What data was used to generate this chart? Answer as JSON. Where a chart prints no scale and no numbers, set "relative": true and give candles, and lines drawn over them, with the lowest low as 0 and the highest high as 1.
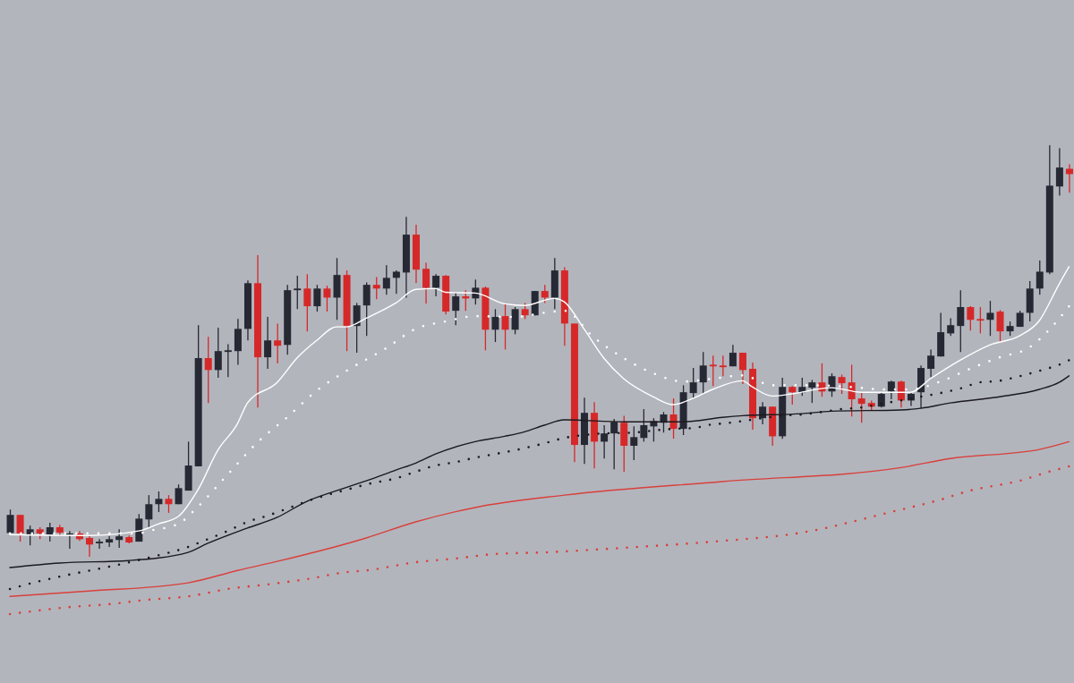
{
  "chart_data": {
    "type": "candlestick",
    "relative": true,
    "categories": [
      null,
      null,
      null,
      null,
      null,
      null,
      null,
      null,
      null,
      null,
      null,
      null,
      null,
      null,
      null,
      null,
      null,
      null,
      null,
      null,
      null,
      null,
      null,
      null,
      null,
      null,
      null,
      null,
      null,
      null,
      null,
      null,
      null,
      null,
      null,
      null,
      null,
      null,
      null,
      null,
      null,
      null,
      null,
      null,
      null,
      null,
      null,
      null,
      null,
      null,
      null,
      null,
      null,
      null,
      null,
      null,
      null,
      null,
      null,
      null,
      null,
      null,
      null,
      null,
      null,
      null,
      null,
      null,
      null,
      null,
      null,
      null,
      null,
      null,
      null,
      null,
      null,
      null,
      null,
      null,
      null,
      null,
      null,
      null,
      null,
      null,
      null,
      null,
      null,
      null,
      null,
      null,
      null,
      null,
      null,
      null,
      null,
      null,
      null,
      null,
      null,
      null,
      null,
      null,
      null,
      null,
      null,
      null
    ],
    "ohlc": [
      [
        0.058,
        0.115,
        0.058,
        0.102
      ],
      [
        0.102,
        0.102,
        0.037,
        0.057
      ],
      [
        0.054,
        0.076,
        0.028,
        0.067
      ],
      [
        0.067,
        0.072,
        0.043,
        0.057
      ],
      [
        0.054,
        0.083,
        0.037,
        0.072
      ],
      [
        0.072,
        0.078,
        0.05,
        0.059
      ],
      [
        0.054,
        0.063,
        0.02,
        0.057
      ],
      [
        0.057,
        0.063,
        0.039,
        0.043
      ],
      [
        0.046,
        0.052,
        0,
        0.03
      ],
      [
        0.033,
        0.043,
        0.02,
        0.037
      ],
      [
        0.035,
        0.05,
        0.024,
        0.043
      ],
      [
        0.041,
        0.067,
        0.022,
        0.05
      ],
      [
        0.048,
        0.052,
        0.033,
        0.035
      ],
      [
        0.037,
        0.104,
        0.037,
        0.093
      ],
      [
        0.091,
        0.15,
        0.07,
        0.128
      ],
      [
        0.128,
        0.159,
        0.109,
        0.141
      ],
      [
        0.141,
        0.15,
        0.107,
        0.128
      ],
      [
        0.128,
        0.176,
        0.128,
        0.167
      ],
      [
        0.161,
        0.28,
        0.161,
        0.222
      ],
      [
        0.22,
        0.563,
        0.22,
        0.483
      ],
      [
        0.483,
        0.535,
        0.374,
        0.454
      ],
      [
        0.454,
        0.557,
        0.435,
        0.5
      ],
      [
        0.498,
        0.517,
        0.437,
        0.502
      ],
      [
        0.5,
        0.578,
        0.467,
        0.554
      ],
      [
        0.554,
        0.672,
        0.526,
        0.665
      ],
      [
        0.665,
        0.733,
        0.363,
        0.485
      ],
      [
        0.485,
        0.583,
        0.457,
        0.526
      ],
      [
        0.526,
        0.567,
        0.47,
        0.513
      ],
      [
        0.515,
        0.661,
        0.491,
        0.648
      ],
      [
        0.648,
        0.683,
        0.602,
        0.652
      ],
      [
        0.652,
        0.687,
        0.548,
        0.609
      ],
      [
        0.609,
        0.661,
        0.596,
        0.652
      ],
      [
        0.652,
        0.659,
        0.596,
        0.63
      ],
      [
        0.63,
        0.726,
        0.576,
        0.685
      ],
      [
        0.685,
        0.696,
        0.5,
        0.561
      ],
      [
        0.561,
        0.617,
        0.496,
        0.611
      ],
      [
        0.611,
        0.667,
        0.537,
        0.661
      ],
      [
        0.661,
        0.68,
        0.626,
        0.652
      ],
      [
        0.652,
        0.709,
        0.637,
        0.678
      ],
      [
        0.678,
        0.696,
        0.639,
        0.693
      ],
      [
        0.691,
        0.826,
        0.63,
        0.783
      ],
      [
        0.783,
        0.807,
        0.665,
        0.698
      ],
      [
        0.7,
        0.715,
        0.615,
        0.654
      ],
      [
        0.654,
        0.687,
        0.633,
        0.683
      ],
      [
        0.683,
        0.685,
        0.589,
        0.596
      ],
      [
        0.598,
        0.641,
        0.563,
        0.633
      ],
      [
        0.633,
        0.648,
        0.598,
        0.628
      ],
      [
        0.628,
        0.674,
        0.613,
        0.654
      ],
      [
        0.654,
        0.657,
        0.502,
        0.552
      ],
      [
        0.552,
        0.602,
        0.522,
        0.583
      ],
      [
        0.585,
        0.615,
        0.504,
        0.552
      ],
      [
        0.552,
        0.607,
        0.541,
        0.602
      ],
      [
        0.602,
        0.617,
        0.578,
        0.587
      ],
      [
        0.587,
        0.646,
        0.587,
        0.646
      ],
      [
        0.646,
        0.661,
        0.617,
        0.63
      ],
      [
        0.63,
        0.726,
        0.602,
        0.696
      ],
      [
        0.696,
        0.704,
        0.513,
        0.567
      ],
      [
        0.567,
        0.567,
        0.23,
        0.272
      ],
      [
        0.272,
        0.387,
        0.226,
        0.35
      ],
      [
        0.35,
        0.376,
        0.215,
        0.28
      ],
      [
        0.28,
        0.32,
        0.239,
        0.3
      ],
      [
        0.3,
        0.335,
        0.213,
        0.328
      ],
      [
        0.326,
        0.343,
        0.207,
        0.27
      ],
      [
        0.27,
        0.317,
        0.235,
        0.291
      ],
      [
        0.289,
        0.359,
        0.28,
        0.32
      ],
      [
        0.317,
        0.337,
        0.28,
        0.33
      ],
      [
        0.326,
        0.352,
        0.302,
        0.346
      ],
      [
        0.346,
        0.385,
        0.287,
        0.311
      ],
      [
        0.311,
        0.417,
        0.296,
        0.4
      ],
      [
        0.398,
        0.459,
        0.385,
        0.424
      ],
      [
        0.424,
        0.498,
        0.396,
        0.465
      ],
      [
        0.467,
        0.489,
        0.415,
        0.463
      ],
      [
        0.465,
        0.489,
        0.439,
        0.461
      ],
      [
        0.463,
        0.515,
        0.463,
        0.496
      ],
      [
        0.496,
        0.496,
        0.42,
        0.454
      ],
      [
        0.457,
        0.472,
        0.309,
        0.337
      ],
      [
        0.337,
        0.376,
        0.322,
        0.365
      ],
      [
        0.365,
        0.365,
        0.27,
        0.293
      ],
      [
        0.293,
        0.435,
        0.287,
        0.413
      ],
      [
        0.413,
        0.415,
        0.37,
        0.4
      ],
      [
        0.4,
        0.435,
        0.391,
        0.413
      ],
      [
        0.411,
        0.43,
        0.374,
        0.424
      ],
      [
        0.424,
        0.47,
        0.389,
        0.402
      ],
      [
        0.402,
        0.446,
        0.389,
        0.439
      ],
      [
        0.437,
        0.443,
        0.396,
        0.422
      ],
      [
        0.424,
        0.467,
        0.341,
        0.383
      ],
      [
        0.385,
        0.4,
        0.326,
        0.372
      ],
      [
        0.374,
        0.38,
        0.357,
        0.365
      ],
      [
        0.365,
        0.4,
        0.363,
        0.396
      ],
      [
        0.402,
        0.428,
        0.383,
        0.426
      ],
      [
        0.426,
        0.428,
        0.363,
        0.38
      ],
      [
        0.38,
        0.398,
        0.367,
        0.396
      ],
      [
        0.4,
        0.465,
        0.361,
        0.459
      ],
      [
        0.457,
        0.504,
        0.437,
        0.489
      ],
      [
        0.487,
        0.593,
        0.487,
        0.546
      ],
      [
        0.543,
        0.58,
        0.537,
        0.563
      ],
      [
        0.561,
        0.648,
        0.498,
        0.607
      ],
      [
        0.607,
        0.609,
        0.55,
        0.576
      ],
      [
        0.578,
        0.607,
        0.543,
        0.574
      ],
      [
        0.576,
        0.622,
        0.537,
        0.593
      ],
      [
        0.596,
        0.6,
        0.522,
        0.548
      ],
      [
        0.548,
        0.572,
        0.537,
        0.561
      ],
      [
        0.559,
        0.598,
        0.559,
        0.593
      ],
      [
        0.593,
        0.67,
        0.572,
        0.652
      ],
      [
        0.652,
        0.72,
        0.637,
        0.693
      ],
      [
        0.691,
        1,
        0.687,
        0.902
      ],
      [
        0.9,
        0.993,
        0.878,
        0.946
      ],
      [
        0.943,
        0.954,
        0.885,
        0.93
      ]
    ],
    "colors": [
      "#262833",
      "#d62828",
      "#262833",
      "#d62828",
      "#262833",
      "#d62828",
      "#262833",
      "#d62828",
      "#d62828",
      "#262833",
      "#262833",
      "#262833",
      "#d62828",
      "#262833",
      "#262833",
      "#262833",
      "#d62828",
      "#262833",
      "#262833",
      "#262833",
      "#d62828",
      "#262833",
      "#262833",
      "#262833",
      "#262833",
      "#d62828",
      "#262833",
      "#d62828",
      "#262833",
      "#262833",
      "#d62828",
      "#262833",
      "#d62828",
      "#262833",
      "#d62828",
      "#262833",
      "#262833",
      "#d62828",
      "#262833",
      "#262833",
      "#262833",
      "#d62828",
      "#d62828",
      "#262833",
      "#d62828",
      "#262833",
      "#d62828",
      "#262833",
      "#d62828",
      "#262833",
      "#d62828",
      "#262833",
      "#d62828",
      "#262833",
      "#d62828",
      "#262833",
      "#d62828",
      "#d62828",
      "#262833",
      "#d62828",
      "#262833",
      "#262833",
      "#d62828",
      "#262833",
      "#262833",
      "#262833",
      "#262833",
      "#d62828",
      "#262833",
      "#262833",
      "#262833",
      "#d62828",
      "#d62828",
      "#262833",
      "#d62828",
      "#d62828",
      "#262833",
      "#d62828",
      "#262833",
      "#d62828",
      "#262833",
      "#262833",
      "#d62828",
      "#262833",
      "#d62828",
      "#d62828",
      "#d62828",
      "#d62828",
      "#262833",
      "#262833",
      "#d62828",
      "#262833",
      "#262833",
      "#262833",
      "#262833",
      "#262833",
      "#262833",
      "#d62828",
      "#d62828",
      "#262833",
      "#d62828",
      "#262833",
      "#262833",
      "#262833",
      "#262833",
      "#262833",
      "#262833",
      "#d62828"
    ],
    "series": [
      {
        "type": "line",
        "color": "#ffffff",
        "line_style": "solid",
        "values": [
          0.054,
          null,
          null,
          null,
          null,
          null,
          null,
          null,
          0.052,
          null,
          null,
          null,
          null,
          0.063,
          null,
          0.08,
          null,
          0.098,
          null,
          0.163,
          null,
          0.259,
          null,
          0.324,
          0.374,
          null,
          null,
          0.424,
          null,
          0.483,
          null,
          0.526,
          null,
          0.559,
          0.559,
          null,
          0.58,
          null,
          null,
          0.617,
          null,
          0.65,
          null,
          0.652,
          0.643,
          null,
          null,
          0.641,
          null,
          null,
          0.615,
          null,
          0.611,
          null,
          null,
          0.628,
          0.62,
          null,
          0.554,
          null,
          0.483,
          null,
          0.433,
          null,
          null,
          0.389,
          null,
          0.37,
          null,
          0.385,
          null,
          0.407,
          null,
          null,
          0.428,
          0.413,
          null,
          0.391,
          null,
          0.396,
          null,
          null,
          null,
          0.411,
          null,
          null,
          0.4,
          null,
          null,
          null,
          null,
          0.4,
          null,
          0.433,
          null,
          null,
          0.478,
          null,
          null,
          0.515,
          null,
          null,
          0.537,
          null,
          0.574,
          null,
          0.663,
          0.705
        ]
      },
      {
        "type": "line",
        "color": "#ffffff",
        "line_style": "dotted",
        "values": [
          0.057,
          null,
          null,
          null,
          null,
          null,
          null,
          null,
          null,
          null,
          null,
          null,
          null,
          0.057,
          0.063,
          null,
          null,
          0.08,
          null,
          0.122,
          null,
          null,
          0.2,
          null,
          null,
          0.278,
          null,
          null,
          0.339,
          null,
          null,
          0.404,
          null,
          null,
          0.452,
          null,
          null,
          null,
          0.507,
          null,
          null,
          0.554,
          null,
          null,
          0.572,
          null,
          null,
          0.585,
          null,
          null,
          null,
          0.583,
          null,
          null,
          0.593,
          null,
          0.598,
          null,
          null,
          0.533,
          null,
          null,
          0.483,
          null,
          null,
          0.446,
          null,
          null,
          0.426,
          null,
          null,
          0.433,
          null,
          null,
          0.441,
          null,
          null,
          0.417,
          null,
          null,
          null,
          0.417,
          null,
          null,
          null,
          0.413,
          null,
          null,
          0.407,
          null,
          null,
          0.407,
          null,
          null,
          0.426,
          null,
          null,
          0.457,
          null,
          null,
          0.485,
          null,
          null,
          0.509,
          null,
          0.552,
          null,
          0.609
        ]
      },
      {
        "type": "line",
        "color": "#1a1a1f",
        "line_style": "solid",
        "values": [
          -0.026,
          null,
          null,
          null,
          null,
          -0.015,
          null,
          null,
          null,
          null,
          null,
          null,
          -0.009,
          null,
          null,
          null,
          null,
          null,
          0.011,
          null,
          0.033,
          null,
          null,
          null,
          0.07,
          null,
          null,
          0.096,
          null,
          null,
          0.135,
          null,
          null,
          0.161,
          null,
          null,
          0.185,
          null,
          null,
          0.211,
          null,
          0.228,
          null,
          0.25,
          null,
          null,
          null,
          0.28,
          null,
          null,
          0.293,
          null,
          0.304,
          null,
          0.32,
          null,
          0.333,
          null,
          null,
          null,
          null,
          null,
          0.328,
          null,
          null,
          null,
          null,
          null,
          0.328,
          null,
          null,
          null,
          0.339,
          null,
          0.343,
          null,
          null,
          null,
          null,
          null,
          0.348,
          null,
          null,
          0.354,
          null,
          null,
          null,
          null,
          null,
          null,
          0.357,
          null,
          0.361,
          null,
          null,
          0.374,
          null,
          null,
          null,
          null,
          0.389,
          null,
          null,
          null,
          0.407,
          null,
          0.424,
          0.44
        ]
      },
      {
        "type": "line",
        "color": "#1a1a1f",
        "line_style": "dotted",
        "values": [
          -0.078,
          null,
          null,
          -0.059,
          null,
          null,
          -0.043,
          null,
          null,
          null,
          -0.024,
          null,
          null,
          null,
          -0.002,
          null,
          null,
          null,
          0.024,
          null,
          0.043,
          null,
          0.063,
          null,
          0.085,
          null,
          0.1,
          null,
          0.117,
          null,
          0.135,
          null,
          0.15,
          null,
          0.163,
          null,
          0.176,
          null,
          null,
          0.191,
          null,
          0.207,
          null,
          0.222,
          null,
          0.23,
          null,
          0.241,
          null,
          0.25,
          null,
          0.259,
          null,
          0.27,
          0.276,
          null,
          0.289,
          null,
          0.296,
          null,
          0.3,
          null,
          null,
          0.302,
          null,
          0.307,
          null,
          0.311,
          null,
          0.313,
          null,
          0.322,
          0.324,
          null,
          0.33,
          null,
          0.337,
          null,
          0.343,
          null,
          0.346,
          null,
          0.352,
          null,
          0.359,
          null,
          0.363,
          null,
          0.372,
          null,
          0.38,
          null,
          0.389,
          null,
          0.398,
          null,
          0.409,
          null,
          0.424,
          null,
          0.428,
          null,
          0.439,
          null,
          0.452,
          null,
          0.467,
          0.478
        ]
      },
      {
        "type": "line",
        "color": "#d9403a",
        "line_style": "solid",
        "values": [
          -0.096,
          null,
          null,
          null,
          null,
          null,
          null,
          null,
          -0.083,
          null,
          null,
          null,
          null,
          null,
          null,
          null,
          null,
          null,
          -0.063,
          null,
          null,
          null,
          null,
          -0.033,
          null,
          null,
          null,
          -0.011,
          null,
          null,
          null,
          null,
          null,
          null,
          null,
          null,
          0.046,
          null,
          null,
          null,
          null,
          0.085,
          null,
          null,
          null,
          null,
          null,
          0.12,
          null,
          null,
          null,
          null,
          null,
          null,
          null,
          null,
          0.15,
          null,
          null,
          null,
          null,
          null,
          null,
          null,
          null,
          null,
          null,
          null,
          null,
          null,
          null,
          null,
          0.183,
          null,
          null,
          null,
          null,
          null,
          null,
          null,
          null,
          null,
          null,
          null,
          null,
          null,
          null,
          null,
          null,
          null,
          0.217,
          null,
          null,
          null,
          null,
          0.239,
          null,
          null,
          null,
          null,
          null,
          null,
          null,
          null,
          0.261,
          null,
          null,
          0.28
        ]
      },
      {
        "type": "line",
        "color": "#d9403a",
        "line_style": "dotted",
        "values": [
          -0.139,
          null,
          null,
          -0.13,
          null,
          null,
          -0.122,
          null,
          null,
          null,
          -0.115,
          null,
          null,
          null,
          -0.104,
          null,
          null,
          null,
          -0.096,
          null,
          null,
          null,
          -0.078,
          null,
          null,
          null,
          -0.067,
          null,
          null,
          null,
          -0.054,
          null,
          null,
          null,
          -0.037,
          null,
          -0.033,
          null,
          null,
          null,
          null,
          -0.013,
          null,
          null,
          null,
          -0.004,
          null,
          null,
          null,
          0.007,
          null,
          null,
          null,
          null,
          0.011,
          null,
          null,
          null,
          null,
          null,
          null,
          null,
          0.022,
          null,
          null,
          null,
          null,
          null,
          null,
          null,
          null,
          0.037,
          null,
          null,
          null,
          null,
          null,
          null,
          null,
          null,
          0.059,
          null,
          null,
          null,
          null,
          null,
          null,
          null,
          null,
          0.109,
          null,
          null,
          null,
          null,
          0.139,
          null,
          null,
          0.161,
          null,
          null,
          null,
          null,
          0.185,
          null,
          null,
          0.207,
          null,
          0.22
        ]
      }
    ]
  }
}
